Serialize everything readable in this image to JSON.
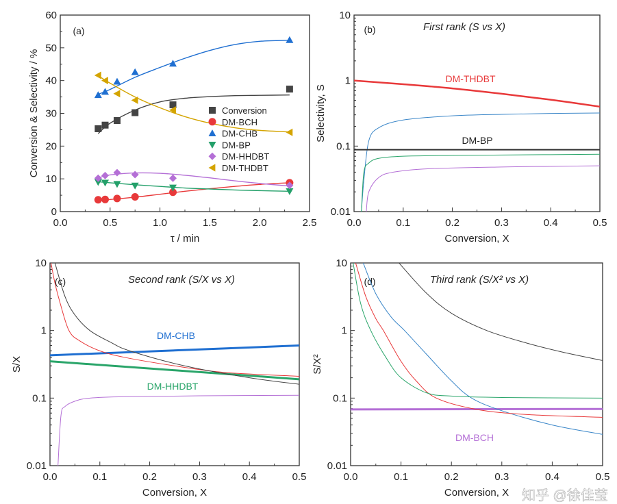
{
  "watermark": "知乎 @徐佳莹",
  "chart_data": [
    {
      "type": "line",
      "panel_label": "(a)",
      "title": "",
      "xlabel": "τ / min",
      "ylabel": "Conversion & Selectivity / %",
      "xlim": [
        0,
        2.5
      ],
      "ylim": [
        0,
        60
      ],
      "yscale": "linear",
      "xticks": [
        0,
        0.5,
        1.0,
        1.5,
        2.0,
        2.5
      ],
      "xtick_labels": [
        "0.0",
        "0.5",
        "1.0",
        "1.5",
        "2.0",
        "2.5"
      ],
      "yticks": [
        0,
        10,
        20,
        30,
        40,
        50,
        60
      ],
      "ytick_labels": [
        "0",
        "10",
        "20",
        "30",
        "40",
        "50",
        "60"
      ],
      "legend": "center-right",
      "series": [
        {
          "name": "Conversion",
          "color": "#444444",
          "marker": "square",
          "x": [
            0.38,
            0.45,
            0.57,
            0.75,
            1.13,
            2.3
          ],
          "y": [
            25.3,
            26.4,
            27.8,
            30.2,
            32.6,
            37.4
          ],
          "fit_x": [
            0.38,
            0.5,
            0.75,
            1,
            1.25,
            1.5,
            1.75,
            2,
            2.3
          ],
          "fit_y": [
            23.8,
            27,
            31,
            33.5,
            34.6,
            35.1,
            35.4,
            35.5,
            35.6
          ]
        },
        {
          "name": "DM-BCH",
          "color": "#e8393a",
          "marker": "circle",
          "x": [
            0.38,
            0.45,
            0.57,
            0.75,
            1.13,
            2.3
          ],
          "y": [
            3.6,
            3.7,
            4.0,
            4.5,
            5.9,
            8.8
          ],
          "fit_x": [
            0.38,
            0.5,
            0.75,
            1,
            1.25,
            1.5,
            1.75,
            2,
            2.3
          ],
          "fit_y": [
            3.5,
            3.7,
            4.4,
            5.3,
            6.2,
            7.0,
            7.7,
            8.3,
            8.8
          ]
        },
        {
          "name": "DM-CHB",
          "color": "#1f6fd1",
          "marker": "triangle-up",
          "x": [
            0.38,
            0.45,
            0.57,
            0.75,
            1.13,
            2.3
          ],
          "y": [
            35.6,
            36.6,
            39.7,
            42.6,
            45.2,
            52.4
          ],
          "fit_x": [
            0.38,
            0.5,
            0.75,
            1,
            1.25,
            1.5,
            1.75,
            2,
            2.3
          ],
          "fit_y": [
            35.8,
            37.3,
            41,
            44,
            46.8,
            49.2,
            51,
            52,
            52.3
          ]
        },
        {
          "name": "DM-BP",
          "color": "#24a06a",
          "marker": "triangle-down",
          "x": [
            0.38,
            0.45,
            0.57,
            0.75,
            1.13,
            2.3
          ],
          "y": [
            9.0,
            8.8,
            8.4,
            7.9,
            7.3,
            6.2
          ],
          "fit_x": [
            0.38,
            0.5,
            0.75,
            1,
            1.25,
            1.5,
            1.75,
            2,
            2.3
          ],
          "fit_y": [
            9.1,
            8.8,
            8.2,
            7.7,
            7.2,
            6.9,
            6.6,
            6.4,
            6.2
          ]
        },
        {
          "name": "DM-HHDBT",
          "color": "#b46fd6",
          "marker": "diamond",
          "x": [
            0.38,
            0.45,
            0.57,
            0.75,
            1.13,
            2.3
          ],
          "y": [
            10.2,
            11.0,
            11.9,
            11.3,
            10.2,
            8.0
          ],
          "fit_x": [
            0.38,
            0.5,
            0.75,
            1,
            1.25,
            1.5,
            1.75,
            2,
            2.3
          ],
          "fit_y": [
            10.3,
            11.2,
            11.8,
            11.7,
            11.1,
            10.3,
            9.4,
            8.6,
            7.8
          ]
        },
        {
          "name": "DM-THDBT",
          "color": "#d4a400",
          "marker": "triangle-left",
          "x": [
            0.38,
            0.45,
            0.57,
            0.75,
            1.13,
            2.3
          ],
          "y": [
            41.6,
            40.0,
            36.0,
            34.0,
            31.0,
            24.2
          ],
          "fit_x": [
            0.38,
            0.5,
            0.75,
            1,
            1.25,
            1.5,
            1.75,
            2,
            2.3
          ],
          "fit_y": [
            41.5,
            39.2,
            35,
            31.7,
            29,
            27,
            25.6,
            24.8,
            24.3
          ]
        }
      ],
      "annotations": []
    },
    {
      "type": "line",
      "panel_label": "(b)",
      "title": "First rank (S vs X)",
      "xlabel": "Conversion, X",
      "ylabel": "Selectivity, S",
      "xlim": [
        0,
        0.5
      ],
      "ylim": [
        0.01,
        10
      ],
      "yscale": "log",
      "xticks": [
        0,
        0.1,
        0.2,
        0.3,
        0.4,
        0.5
      ],
      "xtick_labels": [
        "0.0",
        "0.1",
        "0.2",
        "0.3",
        "0.4",
        "0.5"
      ],
      "yticks": [
        0.01,
        0.1,
        1,
        10
      ],
      "ytick_labels": [
        "0.01",
        "0.1",
        "1",
        "10"
      ],
      "series": [
        {
          "name": "DM-THDBT",
          "color": "#e8393a",
          "width": 2.5,
          "x": [
            0,
            0.1,
            0.2,
            0.3,
            0.4,
            0.5
          ],
          "y": [
            1.0,
            0.88,
            0.76,
            0.63,
            0.51,
            0.4
          ]
        },
        {
          "color": "#3a86c8",
          "width": 1,
          "x": [
            0.015,
            0.02,
            0.03,
            0.05,
            0.1,
            0.2,
            0.3,
            0.4,
            0.5
          ],
          "y": [
            0.01,
            0.03,
            0.12,
            0.19,
            0.25,
            0.29,
            0.305,
            0.315,
            0.32
          ]
        },
        {
          "name": "DM-BP",
          "color": "#333333",
          "width": 2,
          "x": [
            0,
            0.5
          ],
          "y": [
            0.088,
            0.088
          ]
        },
        {
          "color": "#2aa56a",
          "width": 1,
          "x": [
            0.015,
            0.02,
            0.03,
            0.05,
            0.1,
            0.2,
            0.3,
            0.4,
            0.5
          ],
          "y": [
            0.01,
            0.04,
            0.055,
            0.065,
            0.07,
            0.072,
            0.073,
            0.074,
            0.075
          ]
        },
        {
          "color": "#b46fd6",
          "width": 1,
          "x": [
            0.025,
            0.03,
            0.05,
            0.08,
            0.15,
            0.3,
            0.4,
            0.5
          ],
          "y": [
            0.01,
            0.02,
            0.033,
            0.04,
            0.045,
            0.048,
            0.049,
            0.05
          ]
        }
      ],
      "annotations": [
        {
          "text": "DM-THDBT",
          "color": "#e8393a"
        },
        {
          "text": "DM-BP",
          "color": "#222222"
        }
      ]
    },
    {
      "type": "line",
      "panel_label": "(c)",
      "title": "Second rank (S/X vs X)",
      "xlabel": "Conversion, X",
      "ylabel": "S/X",
      "xlim": [
        0,
        0.5
      ],
      "ylim": [
        0.01,
        10
      ],
      "yscale": "log",
      "xticks": [
        0,
        0.1,
        0.2,
        0.3,
        0.4,
        0.5
      ],
      "xtick_labels": [
        "0.0",
        "0.1",
        "0.2",
        "0.3",
        "0.4",
        "0.5"
      ],
      "yticks": [
        0.01,
        0.1,
        1,
        10
      ],
      "ytick_labels": [
        "0.01",
        "0.1",
        "1",
        "10"
      ],
      "series": [
        {
          "name": "DM-CHB",
          "color": "#1f6fd1",
          "width": 3,
          "x": [
            0,
            0.5
          ],
          "y": [
            0.43,
            0.6
          ]
        },
        {
          "name": "DM-HHDBT",
          "color": "#2aa56a",
          "width": 3,
          "x": [
            0,
            0.5
          ],
          "y": [
            0.35,
            0.19
          ]
        },
        {
          "color": "#e8393a",
          "width": 1,
          "x": [
            0.002,
            0.01,
            0.02,
            0.038,
            0.06,
            0.1,
            0.15,
            0.25,
            0.35,
            0.5
          ],
          "y": [
            10,
            5,
            2.6,
            1.0,
            0.7,
            0.5,
            0.4,
            0.3,
            0.24,
            0.21
          ]
        },
        {
          "color": "#444444",
          "width": 1,
          "x": [
            0.01,
            0.03,
            0.05,
            0.08,
            0.12,
            0.16,
            0.27,
            0.4,
            0.5
          ],
          "y": [
            10,
            3.2,
            1.7,
            1.0,
            0.68,
            0.5,
            0.3,
            0.2,
            0.16
          ]
        },
        {
          "color": "#b46fd6",
          "width": 1,
          "x": [
            0.016,
            0.022,
            0.03,
            0.05,
            0.08,
            0.15,
            0.3,
            0.5
          ],
          "y": [
            0.01,
            0.055,
            0.075,
            0.09,
            0.1,
            0.105,
            0.108,
            0.11
          ]
        }
      ],
      "annotations": [
        {
          "text": "DM-CHB",
          "color": "#1f6fd1"
        },
        {
          "text": "DM-HHDBT",
          "color": "#2aa56a"
        }
      ]
    },
    {
      "type": "line",
      "panel_label": "(d)",
      "title": "Third rank (S/X² vs X)",
      "xlabel": "Conversion, X",
      "ylabel": "S/X²",
      "xlim": [
        0,
        0.5
      ],
      "ylim": [
        0.01,
        10
      ],
      "yscale": "log",
      "xticks": [
        0,
        0.1,
        0.2,
        0.3,
        0.4,
        0.5
      ],
      "xtick_labels": [
        "0.0",
        "0.1",
        "0.2",
        "0.3",
        "0.4",
        "0.5"
      ],
      "yticks": [
        0.01,
        0.1,
        1,
        10
      ],
      "ytick_labels": [
        "0.01",
        "0.1",
        "1",
        "10"
      ],
      "series": [
        {
          "name": "DM-BCH",
          "color": "#b46fd6",
          "width": 3,
          "x": [
            0,
            0.5
          ],
          "y": [
            0.068,
            0.069
          ]
        },
        {
          "color": "#444444",
          "width": 1,
          "x": [
            0.096,
            0.15,
            0.2,
            0.27,
            0.35,
            0.42,
            0.5
          ],
          "y": [
            10,
            3.6,
            1.8,
            1.0,
            0.65,
            0.48,
            0.36
          ]
        },
        {
          "color": "#3a86c8",
          "width": 1,
          "x": [
            0.025,
            0.05,
            0.08,
            0.107,
            0.15,
            0.2,
            0.24,
            0.3,
            0.4,
            0.5
          ],
          "y": [
            10,
            3.5,
            1.6,
            1.0,
            0.45,
            0.18,
            0.1,
            0.065,
            0.04,
            0.029
          ]
        },
        {
          "color": "#e8393a",
          "width": 1,
          "x": [
            0.01,
            0.03,
            0.05,
            0.065,
            0.1,
            0.13,
            0.17,
            0.25,
            0.35,
            0.5
          ],
          "y": [
            10,
            3.2,
            1.5,
            1.0,
            0.35,
            0.18,
            0.1,
            0.068,
            0.057,
            0.052
          ]
        },
        {
          "color": "#2aa56a",
          "width": 1,
          "x": [
            0.005,
            0.02,
            0.04,
            0.07,
            0.1,
            0.15,
            0.2,
            0.3,
            0.5
          ],
          "y": [
            10,
            2.5,
            1.0,
            0.4,
            0.2,
            0.12,
            0.107,
            0.102,
            0.1
          ]
        }
      ],
      "annotations": [
        {
          "text": "DM-BCH",
          "color": "#b46fd6"
        }
      ]
    }
  ]
}
